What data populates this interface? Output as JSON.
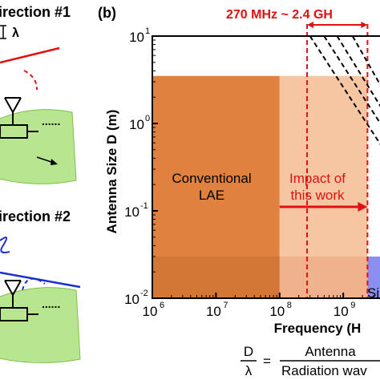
{
  "panel_label": "(b)",
  "left_panel": {
    "direction1_label": "irection #1",
    "direction2_label": "irection #2",
    "lambda_label": "λ",
    "dots": "......"
  },
  "annotations": {
    "range_label": "270 MHz ~ 2.4 GH",
    "region_conventional": [
      "Conventional",
      "LAE"
    ],
    "region_impact": [
      "Impact of",
      "this work"
    ],
    "region_si_label": "Si"
  },
  "formula": {
    "lhs_num": "D",
    "lhs_den": "λ",
    "equals": "=",
    "rhs_num": "Antenna",
    "rhs_den": "Radiation wav"
  },
  "colors": {
    "conventional_fill": "#e0813f",
    "impact_fill": "#f6c6a3",
    "si_fill": "#8a8ff0",
    "accent_red": "#e01010",
    "substrate_green": "#b8e58f",
    "axis": "#000000"
  },
  "chart_data": {
    "type": "area",
    "xscale": "log",
    "yscale": "log",
    "xlim": [
      1000000,
      4000000000
    ],
    "ylim": [
      0.01,
      10
    ],
    "xlabel": "Frequency (H",
    "ylabel": "Antenna Size D (m)",
    "x_ticks": [
      {
        "value": 1000000,
        "base": "10",
        "exp": "6"
      },
      {
        "value": 10000000,
        "base": "10",
        "exp": "7"
      },
      {
        "value": 100000000,
        "base": "10",
        "exp": "8"
      },
      {
        "value": 1000000000,
        "base": "10",
        "exp": "9"
      }
    ],
    "y_ticks": [
      {
        "value": 10,
        "base": "10",
        "exp": "1"
      },
      {
        "value": 1,
        "base": "10",
        "exp": "0"
      },
      {
        "value": 0.1,
        "base": "10",
        "exp": "-1"
      },
      {
        "value": 0.01,
        "base": "10",
        "exp": "-2"
      }
    ],
    "regions": [
      {
        "name": "Conventional LAE",
        "x": [
          1000000,
          100000000
        ],
        "y": [
          0.01,
          3.5
        ],
        "color": "#e0813f"
      },
      {
        "name": "Impact of this work",
        "x": [
          100000000,
          2400000000
        ],
        "y": [
          0.01,
          3.5
        ],
        "color": "#f6c6a3"
      },
      {
        "name": "Si",
        "x": [
          2400000000,
          4000000000
        ],
        "y": [
          0.01,
          0.03
        ],
        "color": "#8a8ff0"
      }
    ],
    "frequency_band": {
      "x": [
        270000000,
        2400000000
      ]
    },
    "dashed_lines": [
      {
        "x": [
          300000000,
          4000000000
        ],
        "y": [
          10,
          0.55
        ]
      },
      {
        "x": [
          500000000,
          4000000000
        ],
        "y": [
          10,
          0.95
        ]
      },
      {
        "x": [
          800000000,
          4000000000
        ],
        "y": [
          10,
          1.5
        ]
      },
      {
        "x": [
          1400000000,
          4000000000
        ],
        "y": [
          10,
          2.6
        ]
      }
    ]
  }
}
